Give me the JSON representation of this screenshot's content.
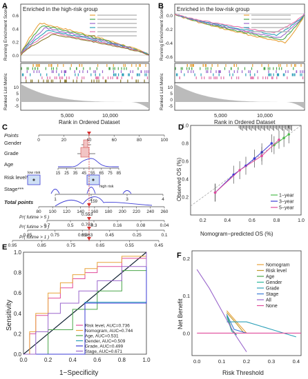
{
  "panels": {
    "A": {
      "letter": "A",
      "title": "Enriched in the high-risk group",
      "ylabel_top": "Running Enrichment Score",
      "ylabel_bottom": "Ranked List Metric",
      "xlabel": "Rank in Ordered Dataset",
      "yticks_top": [
        "0.6",
        "0.4",
        "0.2",
        "0.0"
      ],
      "yticks_bottom": [
        "10",
        "5",
        "0",
        "-5"
      ],
      "xticks": [
        "5,000",
        "10,000"
      ],
      "legend_count": 6,
      "colors": [
        "#e8a23a",
        "#4aa64a",
        "#9a66cc",
        "#2b9fb8",
        "#e36fa8",
        "#8c7a2a"
      ],
      "curve_heights": [
        0.78,
        0.72,
        0.66,
        0.6,
        0.55,
        0.5
      ]
    },
    "B": {
      "letter": "B",
      "title": "Enriched in the low-risk group",
      "ylabel_top": "Running Enrichment Score",
      "ylabel_bottom": "Ranked List Metric",
      "xlabel": "Rank in Ordered Dataset",
      "yticks_top": [
        "0.0",
        "-0.2",
        "-0.4",
        "-0.6"
      ],
      "yticks_bottom": [
        "10",
        "5",
        "0",
        "-5"
      ],
      "xticks": [
        "5,000",
        "10,000"
      ],
      "legend_count": 5,
      "colors": [
        "#e8a23a",
        "#4aa64a",
        "#9a66cc",
        "#2b9fb8",
        "#e36fa8"
      ],
      "curve_depths": [
        0.7,
        0.64,
        0.58,
        0.52,
        0.46
      ]
    },
    "C": {
      "letter": "C",
      "rows": [
        {
          "label": "Points"
        },
        {
          "label": "Gender"
        },
        {
          "label": "Grade"
        },
        {
          "label": "Age"
        },
        {
          "label": "Risk level**"
        },
        {
          "label": "Stage***"
        },
        {
          "label": "Total points"
        },
        {
          "label": "Pr( futime > 5 )"
        },
        {
          "label": "Pr( futime > 3 )"
        },
        {
          "label": "Pr( futime > 1 )"
        }
      ],
      "points_ticks": [
        "0",
        "20",
        "40",
        "60",
        "80",
        "100"
      ],
      "age_ticks": [
        "15",
        "25",
        "35",
        "45",
        "55",
        "65",
        "75",
        "85"
      ],
      "risk_labels": [
        "low risk",
        "high risk"
      ],
      "stage_ticks": [
        "1",
        "2",
        "3",
        "4"
      ],
      "total_ticks": [
        "80",
        "100",
        "120",
        "140",
        "160",
        "180",
        "200",
        "220",
        "240",
        "260"
      ],
      "pr5_ticks": [
        "0.7",
        "0.5",
        "0.3",
        "0.16",
        "0.08",
        "0.04"
      ],
      "pr3_ticks": [
        "0.85",
        "0.75",
        "0.65",
        "0.45",
        "0.25",
        "0.1"
      ],
      "pr1_ticks": [
        "0.95",
        "0.85",
        "0.75",
        "0.65",
        "0.55",
        "0.45"
      ],
      "pr5_value": "0.553",
      "pr3_value": "0.703",
      "pr1_value": "0.863",
      "total_value": "159"
    },
    "D": {
      "letter": "D",
      "xlabel": "Nomogram−predicted OS (%)",
      "ylabel": "Observed OS (%)",
      "ticks": [
        "0.2",
        "0.4",
        "0.6",
        "0.8",
        "1.0"
      ],
      "series": [
        {
          "name": "1−year",
          "color": "#4cbb4c"
        },
        {
          "name": "3−year",
          "color": "#3b3bd6"
        },
        {
          "name": "5−year",
          "color": "#e04a9a"
        }
      ]
    },
    "E": {
      "letter": "E",
      "xlabel": "1−Specificity",
      "ylabel": "Sensitivity",
      "ticks": [
        "0.0",
        "0.2",
        "0.4",
        "0.6",
        "0.8",
        "1.0"
      ],
      "legend": [
        {
          "name": "Risk level, AUC=0.736",
          "color": "#e04a9a"
        },
        {
          "name": "Nomogram, AUC=0.744",
          "color": "#e8a23a"
        },
        {
          "name": "Age, AUC=0.531",
          "color": "#4aa64a"
        },
        {
          "name": "Gender, AUC=0.509",
          "color": "#2b9fb8"
        },
        {
          "name": "Grade, AUC=0.499",
          "color": "#3b3bd6"
        },
        {
          "name": "Stage, AUC=0.671",
          "color": "#9a66cc"
        }
      ]
    },
    "F": {
      "letter": "F",
      "xlabel": "Risk Threshold",
      "ylabel": "Net Benefit",
      "xticks": [
        "0.0",
        "0.1",
        "0.2",
        "0.3",
        "0.4"
      ],
      "yticks": [
        "0.2",
        "0.1",
        "0.0"
      ],
      "legend": [
        {
          "name": "Nomogram",
          "color": "#e8a23a"
        },
        {
          "name": "Risk level",
          "color": "#c09a2a"
        },
        {
          "name": "Age",
          "color": "#4aa64a"
        },
        {
          "name": "Gender",
          "color": "#2bb89a"
        },
        {
          "name": "Grade",
          "color": "#2b9fb8"
        },
        {
          "name": "Stage",
          "color": "#3b7bd6"
        },
        {
          "name": "All",
          "color": "#9a66cc"
        },
        {
          "name": "None",
          "color": "#e04a9a"
        }
      ]
    }
  },
  "chart_data": [
    {
      "type": "line",
      "panel": "D",
      "xlim": [
        0.1,
        1.0
      ],
      "ylim": [
        0.0,
        1.0
      ],
      "series": [
        {
          "name": "1−year",
          "x": [
            0.78,
            0.86,
            0.9
          ],
          "y": [
            0.78,
            0.86,
            0.9
          ]
        },
        {
          "name": "3−year",
          "x": [
            0.3,
            0.45,
            0.55,
            0.62,
            0.68,
            0.76
          ],
          "y": [
            0.25,
            0.45,
            0.55,
            0.63,
            0.7,
            0.8
          ]
        },
        {
          "name": "5−year",
          "x": [
            0.3,
            0.5,
            0.68,
            0.82
          ],
          "y": [
            0.25,
            0.5,
            0.66,
            0.84
          ]
        }
      ]
    },
    {
      "type": "line",
      "panel": "E",
      "xlim": [
        0.0,
        1.0
      ],
      "ylim": [
        0.0,
        1.0
      ],
      "series": [
        {
          "name": "Risk level, AUC=0.736",
          "x": [
            0,
            0.05,
            0.1,
            0.2,
            0.3,
            0.4,
            0.5,
            0.6,
            0.8,
            1.0
          ],
          "y": [
            0,
            0.2,
            0.38,
            0.55,
            0.65,
            0.74,
            0.8,
            0.86,
            0.94,
            1.0
          ]
        },
        {
          "name": "Nomogram, AUC=0.744",
          "x": [
            0,
            0.05,
            0.1,
            0.2,
            0.3,
            0.4,
            0.5,
            0.6,
            0.8,
            1.0
          ],
          "y": [
            0,
            0.22,
            0.4,
            0.6,
            0.7,
            0.78,
            0.84,
            0.9,
            0.96,
            1.0
          ]
        },
        {
          "name": "Age, AUC=0.531",
          "x": [
            0,
            0.2,
            0.4,
            0.6,
            0.8,
            1.0
          ],
          "y": [
            0,
            0.24,
            0.44,
            0.62,
            0.82,
            1.0
          ]
        },
        {
          "name": "Gender, AUC=0.509",
          "x": [
            0,
            0.5,
            1.0
          ],
          "y": [
            0,
            0.51,
            1.0
          ]
        },
        {
          "name": "Grade, AUC=0.499",
          "x": [
            0,
            0.5,
            1.0
          ],
          "y": [
            0,
            0.5,
            1.0
          ]
        },
        {
          "name": "Stage, AUC=0.671",
          "x": [
            0,
            0.1,
            0.2,
            0.3,
            0.45,
            0.6,
            0.8,
            1.0
          ],
          "y": [
            0,
            0.22,
            0.4,
            0.5,
            0.62,
            0.72,
            0.86,
            1.0
          ]
        }
      ]
    },
    {
      "type": "line",
      "panel": "F",
      "xlim": [
        -0.02,
        0.42
      ],
      "ylim": [
        -0.06,
        0.22
      ],
      "series": [
        {
          "name": "Nomogram",
          "x": [
            0.12,
            0.16,
            0.2
          ],
          "y": [
            0.06,
            0.03,
            0.0
          ]
        },
        {
          "name": "Risk level",
          "x": [
            0.12,
            0.16,
            0.19
          ],
          "y": [
            0.055,
            0.025,
            0.0
          ]
        },
        {
          "name": "Age",
          "x": [
            0.12,
            0.14,
            0.16
          ],
          "y": [
            0.05,
            0.01,
            -0.005
          ]
        },
        {
          "name": "Gender",
          "x": [
            0.12,
            0.14,
            0.16
          ],
          "y": [
            0.045,
            0.005,
            -0.005
          ]
        },
        {
          "name": "Grade",
          "x": [
            0.12,
            0.2,
            0.3,
            0.4
          ],
          "y": [
            0.03,
            0.03,
            0.01,
            -0.01
          ]
        },
        {
          "name": "Stage",
          "x": [
            0.12,
            0.15,
            0.2
          ],
          "y": [
            0.05,
            0.01,
            0.0
          ]
        },
        {
          "name": "All",
          "x": [
            0.0,
            0.05,
            0.1,
            0.15,
            0.2
          ],
          "y": [
            0.17,
            0.12,
            0.06,
            0.0,
            -0.05
          ]
        },
        {
          "name": "None",
          "x": [
            0.0,
            0.42
          ],
          "y": [
            0.0,
            0.0
          ]
        }
      ]
    }
  ]
}
